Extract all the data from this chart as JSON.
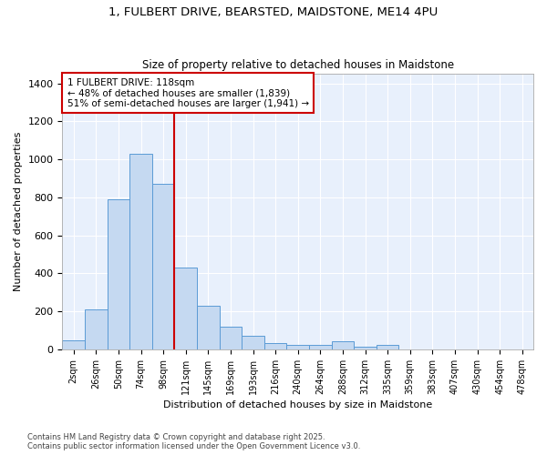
{
  "title_line1": "1, FULBERT DRIVE, BEARSTED, MAIDSTONE, ME14 4PU",
  "title_line2": "Size of property relative to detached houses in Maidstone",
  "xlabel": "Distribution of detached houses by size in Maidstone",
  "ylabel": "Number of detached properties",
  "bar_labels": [
    "2sqm",
    "26sqm",
    "50sqm",
    "74sqm",
    "98sqm",
    "121sqm",
    "145sqm",
    "169sqm",
    "193sqm",
    "216sqm",
    "240sqm",
    "264sqm",
    "288sqm",
    "312sqm",
    "335sqm",
    "359sqm",
    "383sqm",
    "407sqm",
    "430sqm",
    "454sqm",
    "478sqm"
  ],
  "bar_values": [
    50,
    210,
    790,
    1030,
    870,
    430,
    230,
    120,
    70,
    35,
    25,
    25,
    45,
    15,
    25,
    0,
    0,
    0,
    0,
    0,
    0
  ],
  "bar_color": "#c5d9f1",
  "bar_edge_color": "#5b9bd5",
  "bar_width": 1.0,
  "vline_index": 5,
  "property_line_label": "1 FULBERT DRIVE: 118sqm",
  "annotation_line2": "← 48% of detached houses are smaller (1,839)",
  "annotation_line3": "51% of semi-detached houses are larger (1,941) →",
  "annotation_box_color": "#ffffff",
  "annotation_box_edge": "#cc0000",
  "vline_color": "#cc0000",
  "ylim": [
    0,
    1450
  ],
  "yticks": [
    0,
    200,
    400,
    600,
    800,
    1000,
    1200,
    1400
  ],
  "bg_color": "#e8f0fc",
  "grid_color": "#ffffff",
  "fig_bg_color": "#ffffff",
  "footer_line1": "Contains HM Land Registry data © Crown copyright and database right 2025.",
  "footer_line2": "Contains public sector information licensed under the Open Government Licence v3.0."
}
